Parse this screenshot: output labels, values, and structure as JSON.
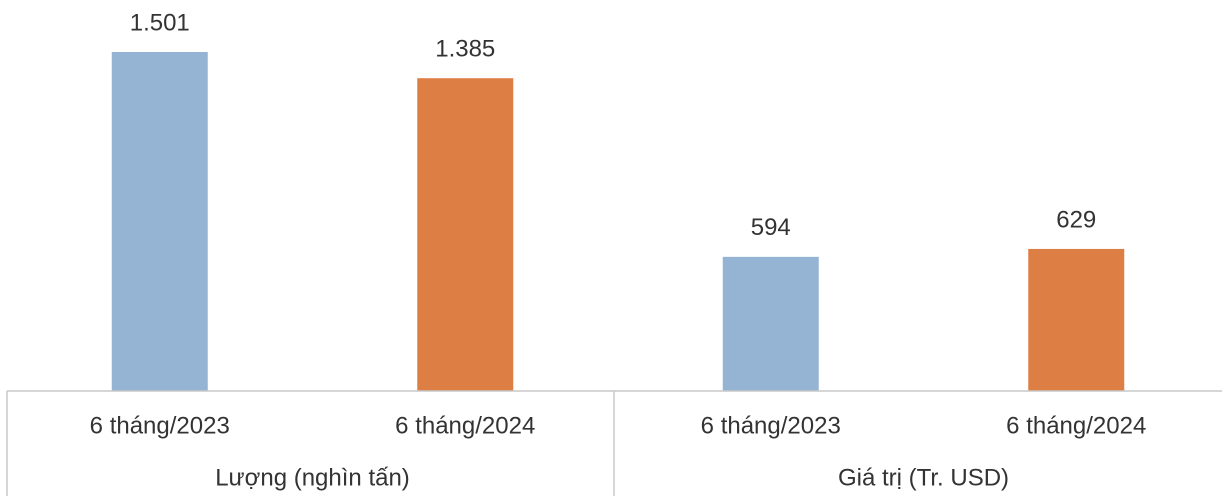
{
  "chart_data": {
    "type": "bar",
    "categories": [
      "6 tháng/2023",
      "6 tháng/2024",
      "6 tháng/2023",
      "6 tháng/2024"
    ],
    "groups": [
      {
        "label": "Lượng (nghìn tấn)",
        "size": 2
      },
      {
        "label": "Giá trị (Tr. USD)",
        "size": 2
      }
    ],
    "values": [
      1501,
      1385,
      594,
      629
    ],
    "value_labels": [
      "1.501",
      "1.385",
      "594",
      "629"
    ],
    "colors": [
      "#95b4d3",
      "#dd7f45",
      "#95b4d3",
      "#dd7f45"
    ]
  }
}
